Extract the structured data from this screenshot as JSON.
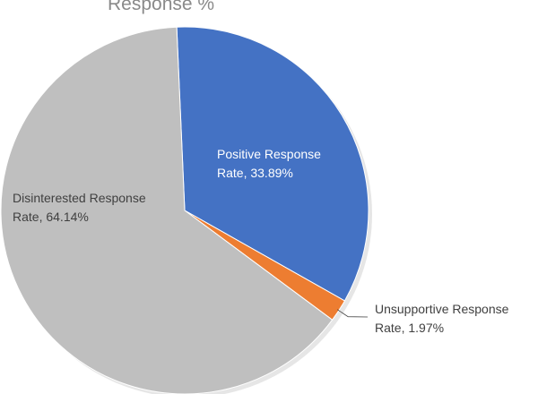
{
  "chart_data": {
    "type": "pie",
    "title": "Response %",
    "series": [
      {
        "name": "Positive Response Rate",
        "value": 33.89,
        "label_lines": [
          "Positive Response",
          "Rate, 33.89%"
        ],
        "color": "#4472c4",
        "label_color": "#ffffff"
      },
      {
        "name": "Unsupportive Response Rate",
        "value": 1.97,
        "label_lines": [
          "Unsupportive Response",
          "Rate, 1.97%"
        ],
        "color": "#ed7d31",
        "label_color": "#404040"
      },
      {
        "name": "Disinterested Response Rate",
        "value": 64.14,
        "label_lines": [
          "Disinterested Response",
          "Rate, 64.14%"
        ],
        "color": "#bfbfbf",
        "label_color": "#404040"
      }
    ],
    "start_angle_deg": -2.5,
    "direction": "clockwise",
    "legend": "none",
    "data_labels": "category name and value"
  }
}
